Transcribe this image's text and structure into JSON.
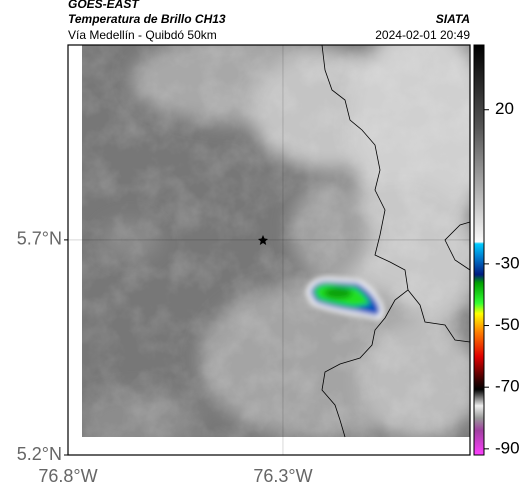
{
  "header": {
    "title": "GOES-EAST",
    "subtitle": "Temperatura de Brillo CH13",
    "route": "Vía Medellín - Quibdó 50km",
    "source": "SIATA",
    "datetime": "2024-02-01 20:49"
  },
  "map": {
    "xlim": [
      -76.8,
      -75.865
    ],
    "ylim": [
      5.2,
      6.153
    ],
    "xticks": [
      {
        "value": -76.8,
        "label": "76.8°W"
      },
      {
        "value": -76.3,
        "label": "76.3°W"
      }
    ],
    "yticks": [
      {
        "value": 5.2,
        "label": "5.2°N"
      },
      {
        "value": 5.7,
        "label": "5.7°N"
      }
    ],
    "grid": true
  },
  "colorbar": {
    "lim": [
      -92,
      41
    ],
    "ticks": [
      20,
      -30,
      -50,
      -70,
      -90
    ]
  }
}
